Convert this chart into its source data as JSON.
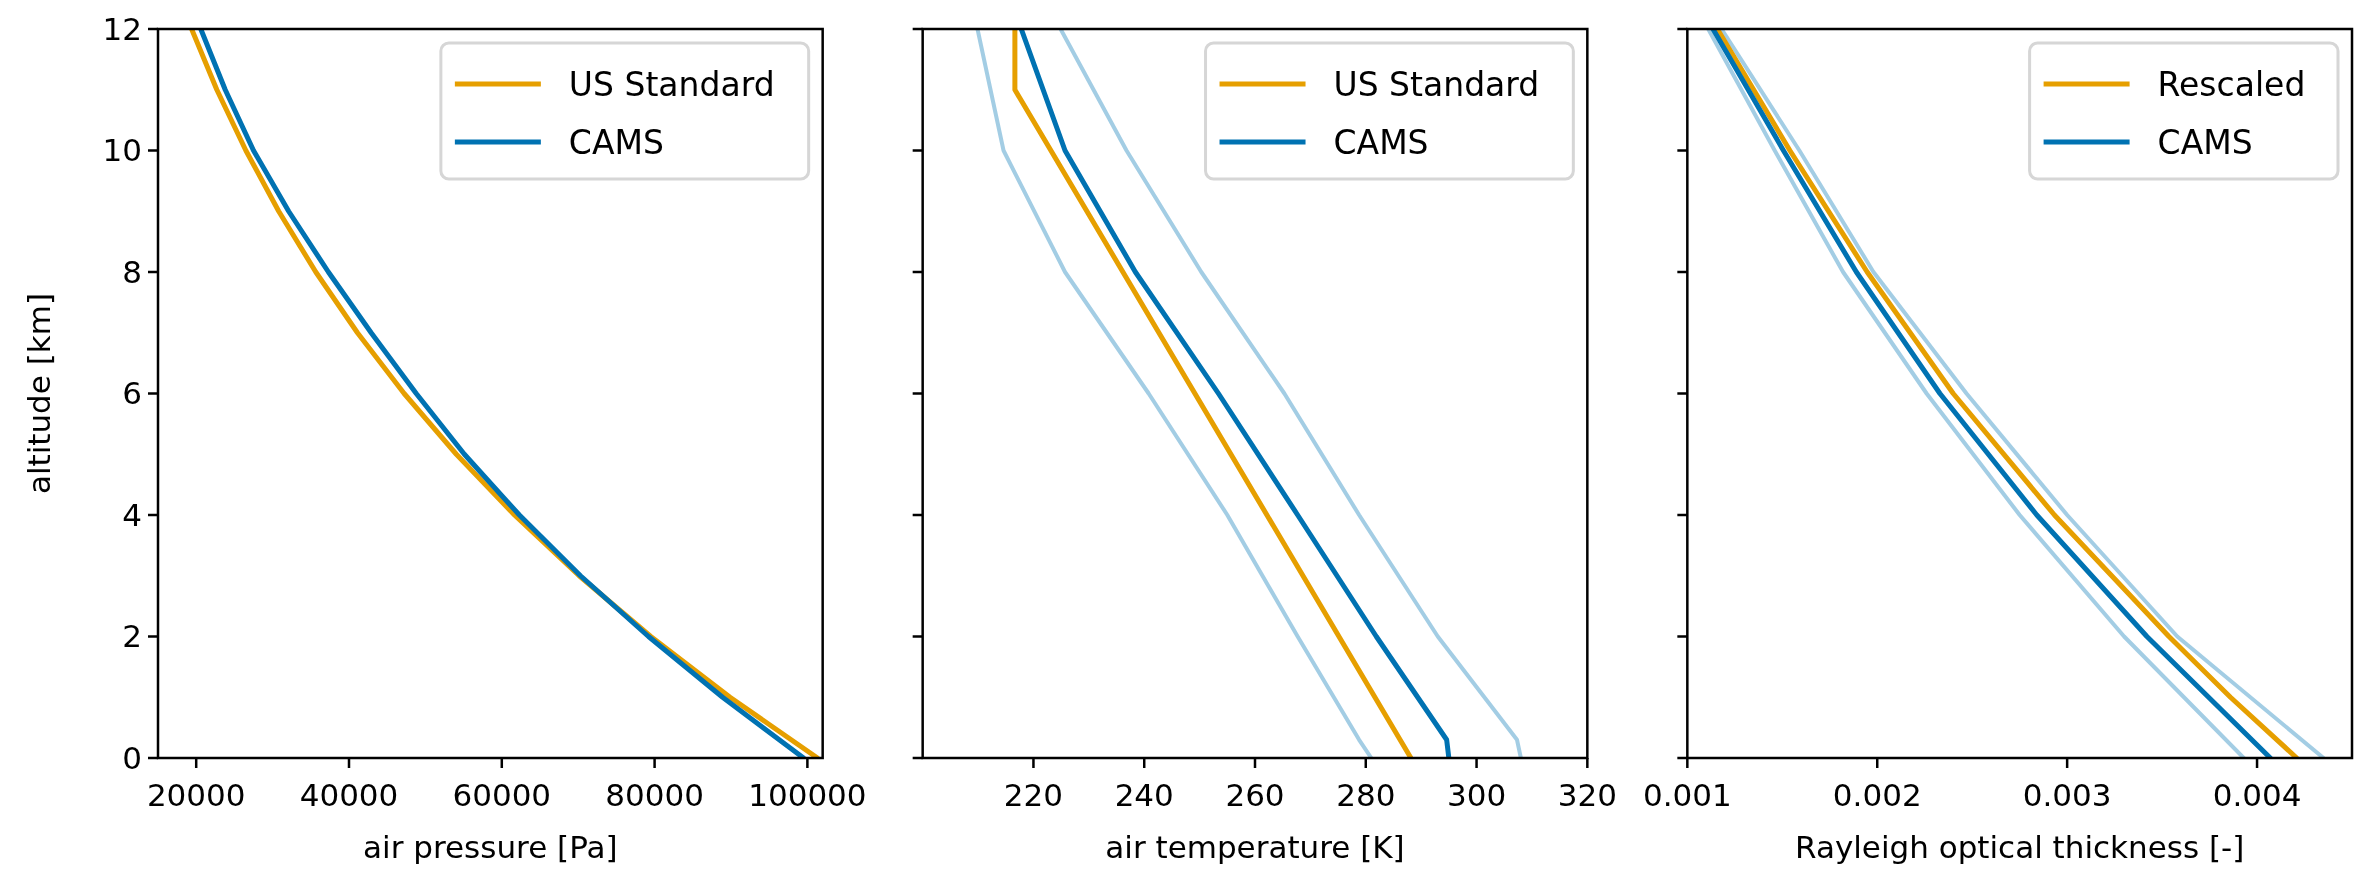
{
  "chart_data": [
    {
      "type": "line",
      "xlabel": "air pressure [Pa]",
      "ylabel": "altitude [km]",
      "xlim": [
        15000,
        102000
      ],
      "xticks": [
        20000,
        40000,
        60000,
        80000,
        100000
      ],
      "ylim": [
        0,
        12
      ],
      "yticks": [
        0,
        2,
        4,
        6,
        8,
        10,
        12
      ],
      "legend": "top right",
      "series": [
        {
          "name": "US Standard",
          "color": "#e69f00",
          "x": [
            101325,
            89876,
            79501,
            70121,
            61660,
            54048,
            47217,
            41105,
            35651,
            30800,
            26500,
            22700,
            19399
          ],
          "values": [
            0,
            1,
            2,
            3,
            4,
            5,
            6,
            7,
            8,
            9,
            10,
            11,
            12
          ]
        },
        {
          "name": "CAMS",
          "color": "#0072b2",
          "x": [
            99500,
            88900,
            79200,
            70300,
            62300,
            55100,
            48800,
            42900,
            37300,
            32100,
            27500,
            23800,
            20600
          ],
          "values": [
            0,
            1,
            2,
            3,
            4,
            5,
            6,
            7,
            8,
            9,
            10,
            11,
            12
          ]
        }
      ]
    },
    {
      "type": "line",
      "xlabel": "air temperature [K]",
      "xlim": [
        200,
        320
      ],
      "xticks": [
        220,
        240,
        260,
        280,
        300,
        320
      ],
      "ylim": [
        0,
        12
      ],
      "yticks": [
        0,
        2,
        4,
        6,
        8,
        10,
        12
      ],
      "tick_labels": "x",
      "legend": "top right",
      "series": [
        {
          "color": "#8cc0dd",
          "x": [
            281,
            278.8,
            267.7,
            255,
            240.8,
            225.7,
            214.6,
            209.9
          ],
          "values": [
            0,
            0.3,
            2,
            4,
            6,
            8,
            10,
            12
          ]
        },
        {
          "color": "#8cc0dd",
          "x": [
            308,
            307.3,
            293,
            278.8,
            265.3,
            250.3,
            236.8,
            224.9
          ],
          "values": [
            0,
            0.3,
            2,
            4,
            6,
            8,
            10,
            12
          ]
        },
        {
          "name": "US Standard",
          "color": "#e69f00",
          "x": [
            288.15,
            216.65,
            216.65
          ],
          "values": [
            0,
            11,
            12
          ]
        },
        {
          "name": "CAMS",
          "color": "#0072b2",
          "x": [
            295,
            294.6,
            281.9,
            267.7,
            253.4,
            238.4,
            225.7,
            217.8
          ],
          "values": [
            0,
            0.3,
            2,
            4,
            6,
            8,
            10,
            12
          ]
        }
      ]
    },
    {
      "type": "line",
      "xlabel": "Rayleigh optical thickness [-]",
      "xlim": [
        0.001,
        0.0045
      ],
      "xticks": [
        0.001,
        0.002,
        0.003,
        0.004
      ],
      "ylim": [
        0,
        12
      ],
      "yticks": [
        0,
        2,
        4,
        6,
        8,
        10,
        12
      ],
      "tick_labels": "x",
      "legend": "top right",
      "series": [
        {
          "color": "#8cc0dd",
          "x": [
            0.00393,
            0.0033,
            0.00275,
            0.00226,
            0.00182,
            0.00146,
            0.00111
          ],
          "values": [
            0,
            2,
            4,
            6,
            8,
            10,
            12
          ]
        },
        {
          "color": "#8cc0dd",
          "x": [
            0.00435,
            0.00358,
            0.003,
            0.00247,
            0.00198,
            0.00159,
            0.00118
          ],
          "values": [
            0,
            2,
            4,
            6,
            8,
            10,
            12
          ]
        },
        {
          "name": "Rescaled",
          "color": "#e69f00",
          "x": [
            0.004209,
            0.00386,
            0.003536,
            0.002933,
            0.0024,
            0.001947,
            0.00154,
            0.001158
          ],
          "values": [
            0,
            1,
            2,
            4,
            6,
            8,
            10,
            12
          ]
        },
        {
          "name": "CAMS",
          "color": "#0072b2",
          "x": [
            0.00407,
            0.00342,
            0.00284,
            0.00233,
            0.00189,
            0.001506,
            0.001135
          ],
          "values": [
            0,
            2,
            4,
            6,
            8,
            10,
            12
          ]
        }
      ]
    }
  ]
}
